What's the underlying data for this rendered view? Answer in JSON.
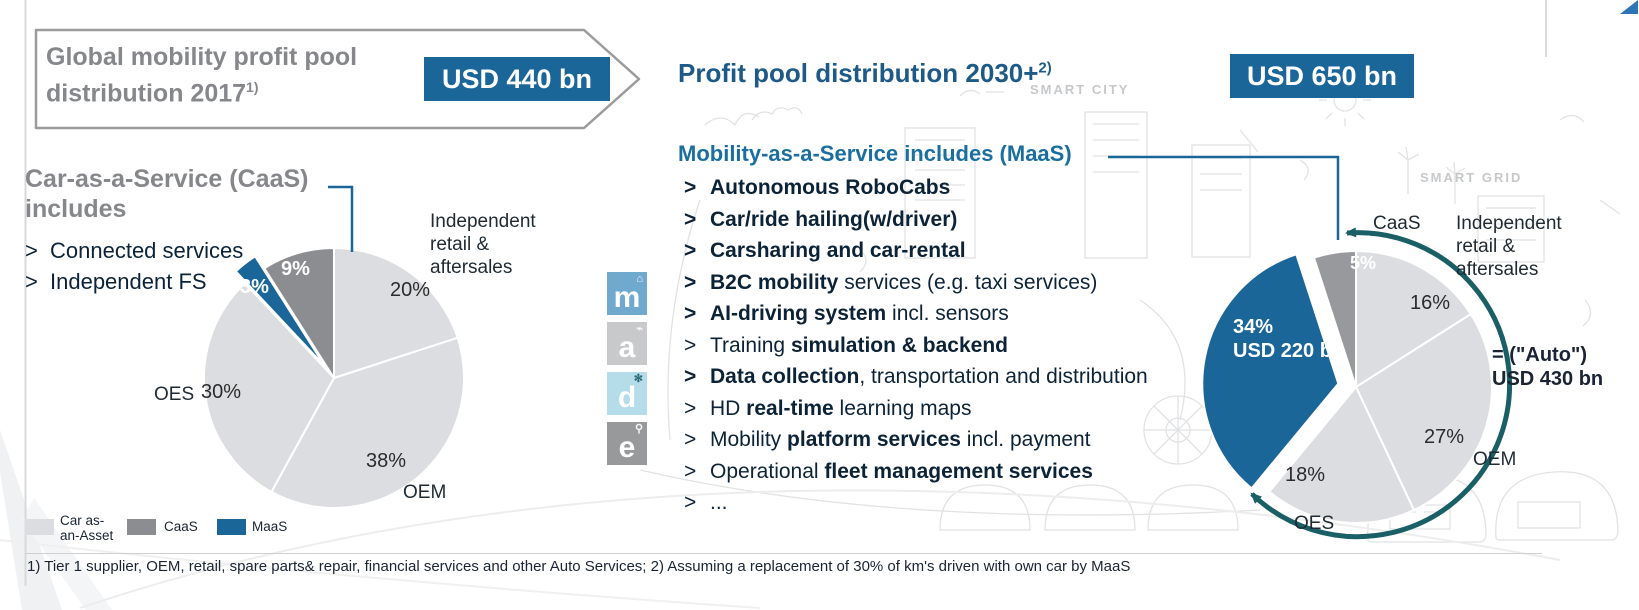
{
  "left_header": {
    "title_line1": "Global mobility profit pool",
    "title_line2": "distribution 2017",
    "title_superscript": "1)",
    "badge": "USD 440 bn"
  },
  "right_header": {
    "title": "Profit pool distribution 2030+",
    "title_superscript": "2)",
    "badge": "USD 650 bn"
  },
  "left_panel": {
    "callout": {
      "heading_line1": "Car-as-a-Service (CaaS)",
      "heading_line2": "includes",
      "bullet": ">",
      "items": [
        "Connected services",
        "Independent FS"
      ]
    },
    "legend": {
      "items": [
        {
          "line1": "Car as-",
          "line2": "an-Asset",
          "color_key": "car_as_asset_gray"
        },
        {
          "line1": "CaaS",
          "line2": "",
          "color_key": "caas_gray"
        },
        {
          "line1": "MaaS",
          "line2": "",
          "color_key": "maas_blue"
        }
      ]
    }
  },
  "maas_panel": {
    "heading": "Mobility-as-a-Service includes (MaaS)",
    "bullet": ">",
    "items": [
      [
        [
          "Autonomous RoboCabs",
          true
        ]
      ],
      [
        [
          "Car/ride hailing(w/driver)",
          true
        ]
      ],
      [
        [
          "Carsharing and car-rental",
          true
        ]
      ],
      [
        [
          "B2C mobility",
          true
        ],
        [
          " services (e.g. taxi services)",
          false
        ]
      ],
      [
        [
          "AI-driving system",
          true
        ],
        [
          " incl. sensors",
          false
        ]
      ],
      [
        [
          "Training ",
          false
        ],
        [
          "simulation & backend",
          true
        ]
      ],
      [
        [
          "Data collection",
          true
        ],
        [
          ", transportation and distribution",
          false
        ]
      ],
      [
        [
          "HD ",
          false
        ],
        [
          "real-time",
          true
        ],
        [
          " learning maps",
          false
        ]
      ],
      [
        [
          "Mobility ",
          false
        ],
        [
          "platform services",
          true
        ],
        [
          " incl. payment",
          false
        ]
      ],
      [
        [
          "Operational ",
          false
        ],
        [
          "fleet management services",
          true
        ]
      ],
      [
        [
          "...",
          false
        ]
      ]
    ]
  },
  "app_tiles": [
    {
      "letter": "m"
    },
    {
      "letter": "a"
    },
    {
      "letter": "d"
    },
    {
      "letter": "e"
    }
  ],
  "background_labels": {
    "smart_city": "SMART CITY",
    "smart_grid": "SMART GRID"
  },
  "footnote": "1) Tier 1 supplier, OEM, retail, spare parts& repair, financial services and other Auto Services; 2) Assuming a replacement of 30% of km's driven with own car by MaaS",
  "colors": {
    "badge_blue": "#1a6699",
    "maas_blue": "#1a6699",
    "caas_gray": "#8b8d90",
    "caas_gray_2030": "#97999c",
    "car_as_asset_gray": "#dcdde0",
    "arc_teal": "#1a5f66",
    "heading_gray": "#85878a",
    "heading_blue": "#1d5a87",
    "maas_heading_blue": "#1a6fa0",
    "text_navy": "#0c2337"
  },
  "chart_data": [
    {
      "type": "pie",
      "title": "Global mobility profit pool distribution 2017",
      "total_label": "USD 440 bn",
      "legend": [
        "Car as-an-Asset",
        "CaaS",
        "MaaS"
      ],
      "slices": [
        {
          "label": "Independent retail & aftersales",
          "value": 20,
          "pct_label": "20%",
          "color": "#dcdde0"
        },
        {
          "label": "OEM",
          "value": 38,
          "pct_label": "38%",
          "color": "#dcdde0"
        },
        {
          "label": "OES",
          "value": 30,
          "pct_label": "30%",
          "color": "#dcdde0"
        },
        {
          "label": "MaaS",
          "value": 3,
          "pct_label": "3%",
          "color": "#1a6699",
          "exploded": true
        },
        {
          "label": "CaaS",
          "value": 9,
          "pct_label": "9%",
          "color": "#8b8d90"
        }
      ]
    },
    {
      "type": "pie",
      "title": "Profit pool distribution 2030+",
      "total_label": "USD 650 bn",
      "slices": [
        {
          "label": "Independent retail & aftersales",
          "value": 16,
          "pct_label": "16%",
          "color": "#dcdde0"
        },
        {
          "label": "OEM",
          "value": 27,
          "pct_label": "27%",
          "color": "#dcdde0"
        },
        {
          "label": "OES",
          "value": 18,
          "pct_label": "18%",
          "color": "#dcdde0"
        },
        {
          "label": "MaaS",
          "value": 34,
          "pct_label": "34%",
          "sub_label": "USD 220 bn",
          "color": "#1a6699",
          "exploded": true
        },
        {
          "label": "CaaS",
          "value": 5,
          "pct_label": "5%",
          "color": "#97999c"
        }
      ],
      "annotation": {
        "label": "= (\"Auto\")",
        "value": "USD 430 bn",
        "covers": [
          "Independent retail & aftersales",
          "OEM",
          "OES",
          "CaaS"
        ]
      }
    }
  ]
}
